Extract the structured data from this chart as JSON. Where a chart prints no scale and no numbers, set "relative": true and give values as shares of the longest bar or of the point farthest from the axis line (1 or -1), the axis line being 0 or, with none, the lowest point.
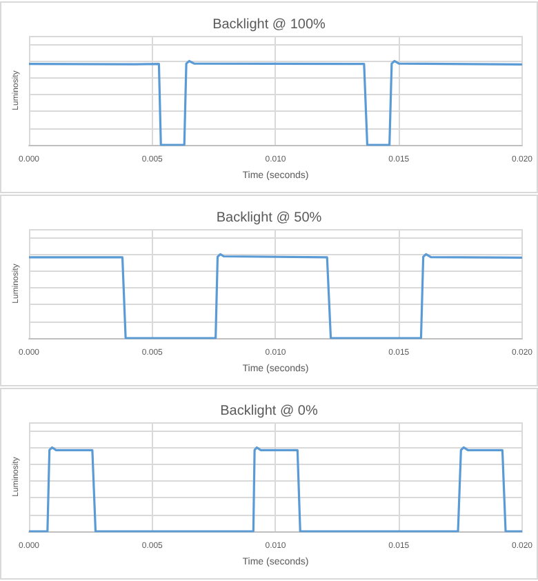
{
  "chart_data": [
    {
      "type": "line",
      "title": "Backlight @ 100%",
      "xlabel": "Time (seconds)",
      "ylabel": "Luminosity",
      "relative": true,
      "grid": true,
      "marker": "none",
      "xlim": [
        0,
        0.02
      ],
      "xticks": [
        {
          "value": 0,
          "label": "0.000"
        },
        {
          "value": 0.005,
          "label": "0.005"
        },
        {
          "value": 0.01,
          "label": "0.010"
        },
        {
          "value": 0.015,
          "label": "0.015"
        },
        {
          "value": 0.02,
          "label": "0.020"
        }
      ],
      "series": [
        {
          "color": "#5b9bd5",
          "x": [
            0,
            0.0043,
            0.00527,
            0.00535,
            0.0063,
            0.00638,
            0.0065,
            0.0067,
            0.01359,
            0.01372,
            0.01462,
            0.01471,
            0.01482,
            0.015,
            0.02
          ],
          "values": [
            0.966,
            0.962,
            0.966,
            0,
            0,
            0.97,
            1,
            0.97,
            0.966,
            0,
            0,
            0.97,
            1,
            0.97,
            0.96
          ]
        }
      ]
    },
    {
      "type": "line",
      "title": "Backlight @ 50%",
      "xlabel": "Time (seconds)",
      "ylabel": "Luminosity",
      "relative": true,
      "grid": true,
      "marker": "none",
      "xlim": [
        0,
        0.02
      ],
      "xticks": [
        {
          "value": 0,
          "label": "0.000"
        },
        {
          "value": 0.005,
          "label": "0.005"
        },
        {
          "value": 0.01,
          "label": "0.010"
        },
        {
          "value": 0.015,
          "label": "0.015"
        },
        {
          "value": 0.02,
          "label": "0.020"
        }
      ],
      "series": [
        {
          "color": "#5b9bd5",
          "x": [
            0,
            0.00379,
            0.00392,
            0.00757,
            0.00765,
            0.00776,
            0.0079,
            0.01209,
            0.01224,
            0.0159,
            0.01599,
            0.0161,
            0.0163,
            0.02
          ],
          "values": [
            0.963,
            0.963,
            0,
            0,
            0.97,
            1,
            0.975,
            0.963,
            0,
            0,
            0.97,
            1,
            0.965,
            0.96
          ]
        }
      ]
    },
    {
      "type": "line",
      "title": "Backlight @ 0%",
      "xlabel": "Time (seconds)",
      "ylabel": "Luminosity",
      "relative": true,
      "grid": true,
      "marker": "none",
      "xlim": [
        0,
        0.02
      ],
      "xticks": [
        {
          "value": 0,
          "label": "0.000"
        },
        {
          "value": 0.005,
          "label": "0.005"
        },
        {
          "value": 0.01,
          "label": "0.010"
        },
        {
          "value": 0.015,
          "label": "0.015"
        },
        {
          "value": 0.02,
          "label": "0.020"
        }
      ],
      "series": [
        {
          "color": "#5b9bd5",
          "x": [
            0,
            0.00075,
            0.00083,
            0.00094,
            0.0011,
            0.00257,
            0.0027,
            0.0091,
            0.00915,
            0.00924,
            0.0094,
            0.01089,
            0.011,
            0.0174,
            0.01752,
            0.01763,
            0.0178,
            0.0192,
            0.01933,
            0.02
          ],
          "values": [
            0,
            0,
            0.97,
            1,
            0.968,
            0.968,
            0,
            0,
            0.97,
            1,
            0.968,
            0.968,
            0,
            0,
            0.97,
            1,
            0.968,
            0.968,
            0,
            0
          ]
        }
      ]
    }
  ]
}
